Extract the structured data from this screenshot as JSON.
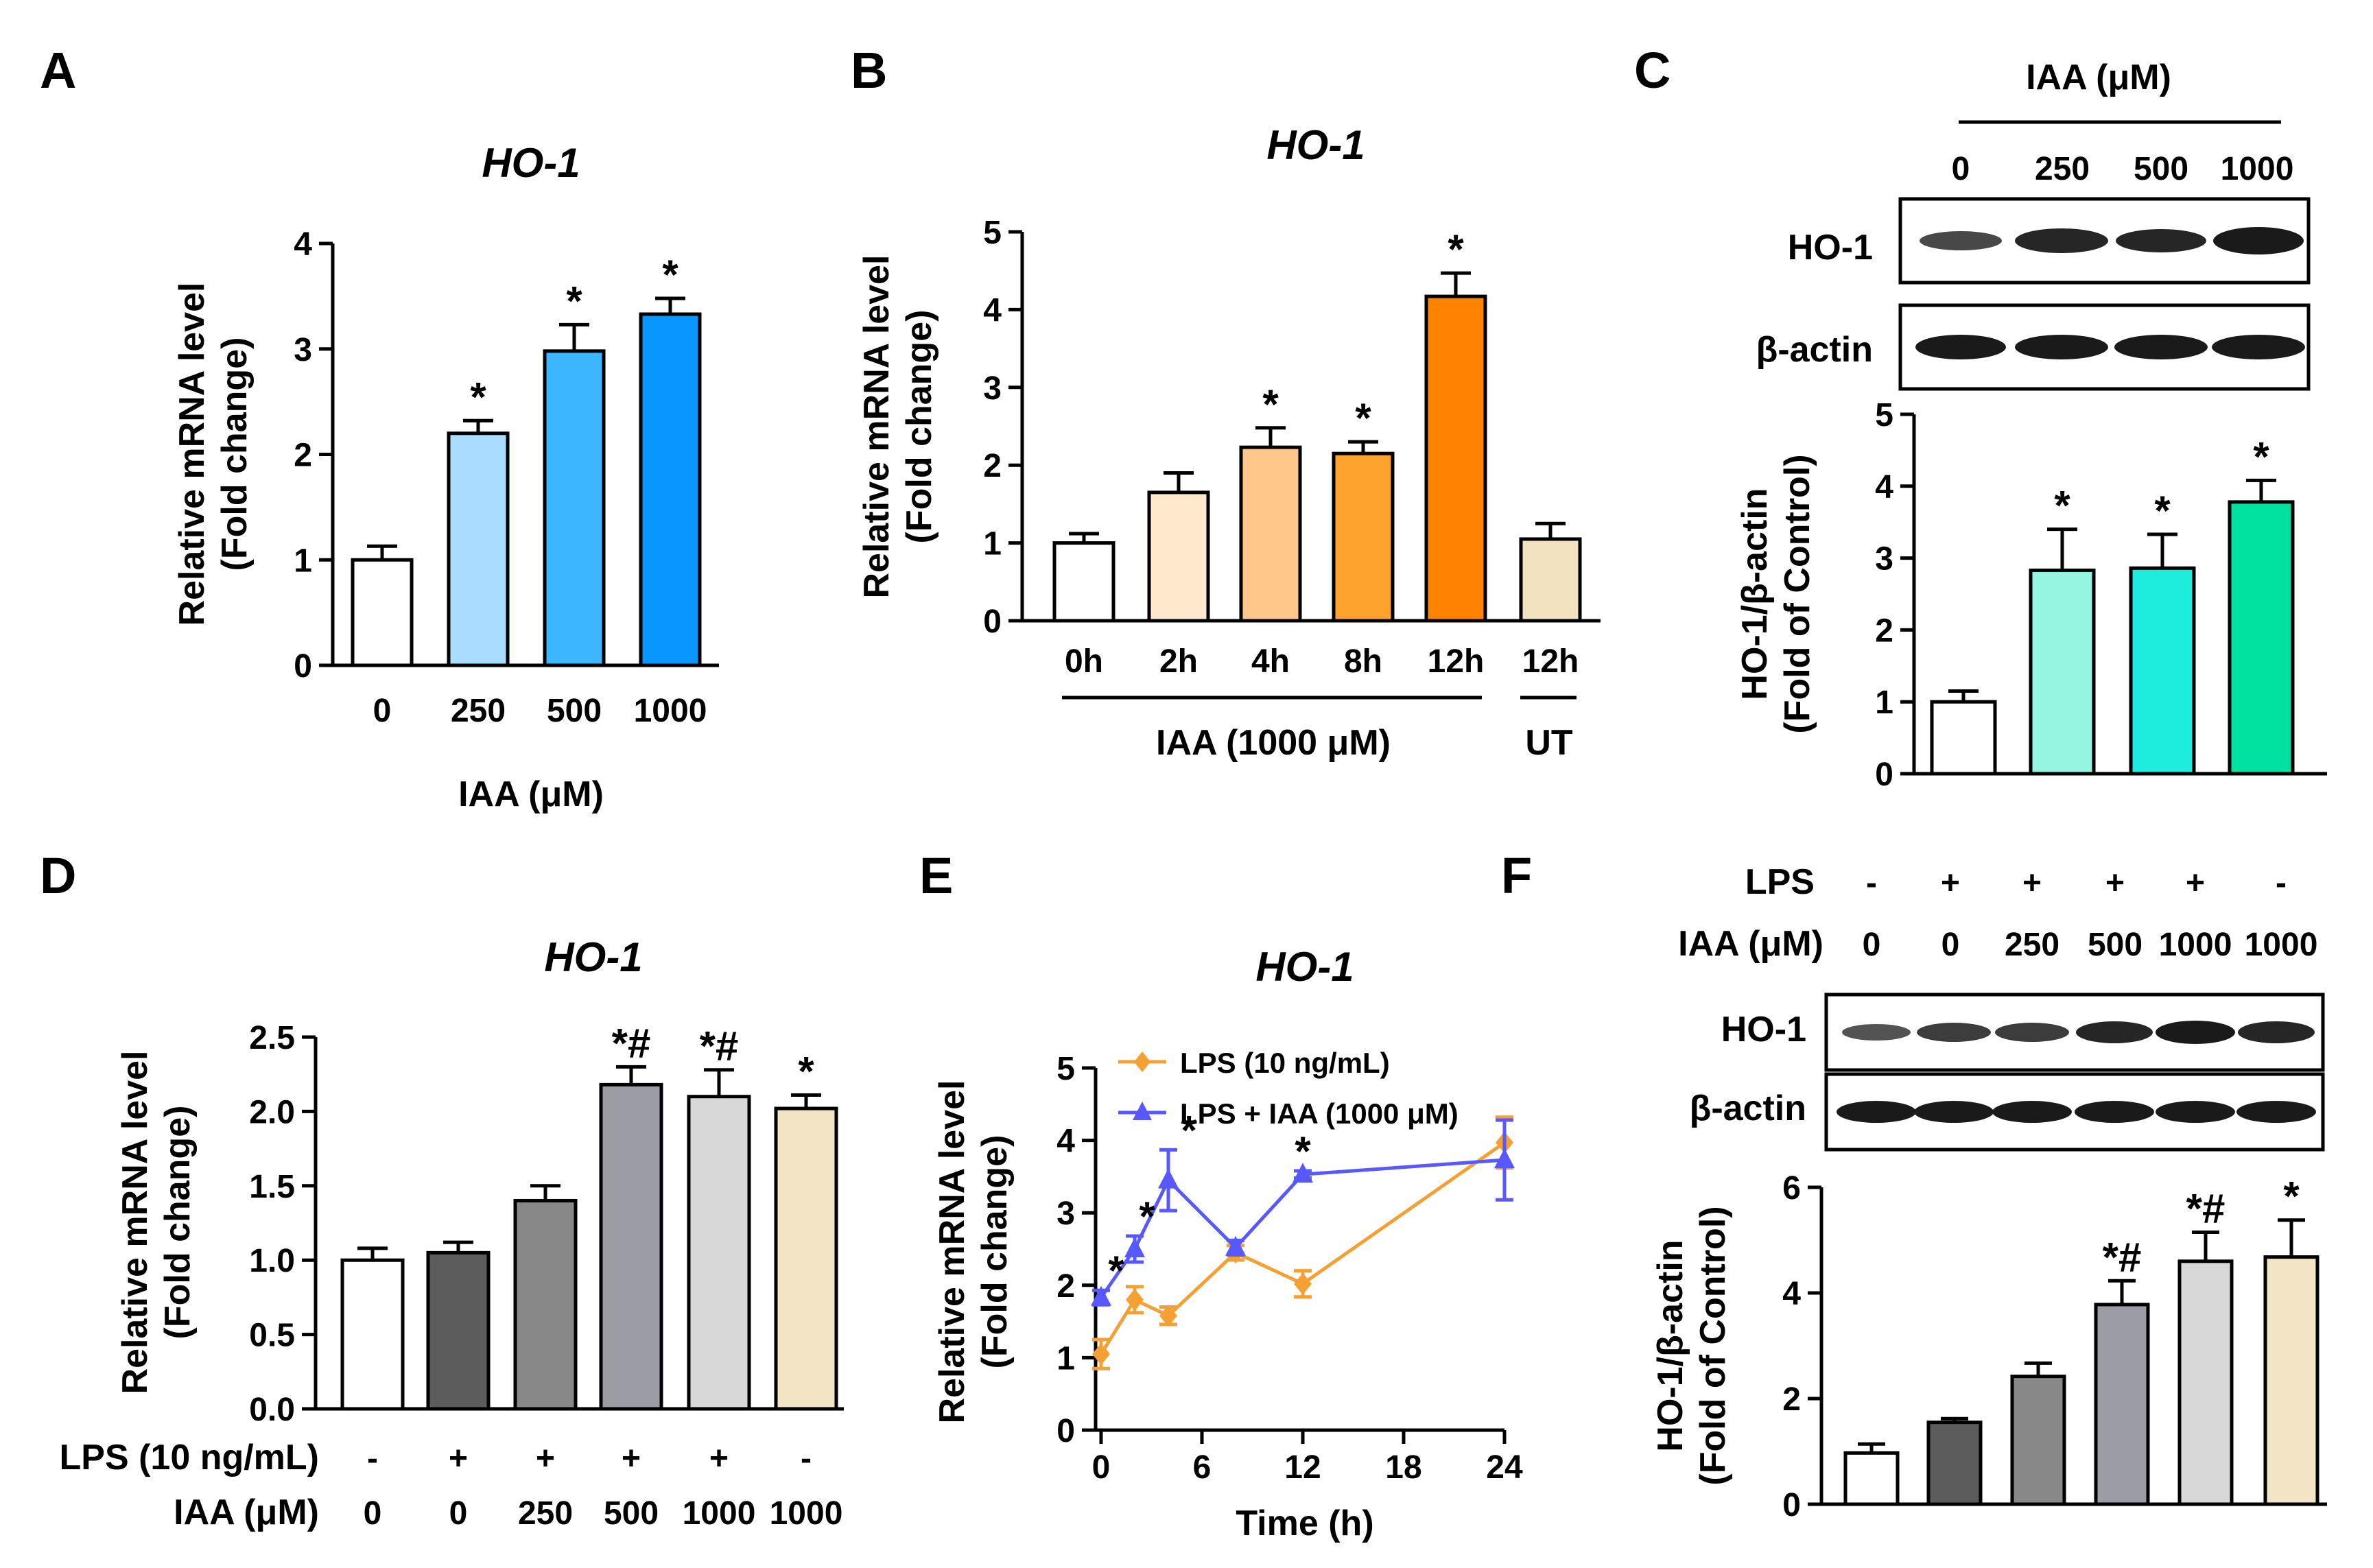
{
  "panels": [
    {
      "letter": "A"
    },
    {
      "letter": "B"
    },
    {
      "letter": "C"
    },
    {
      "letter": "D"
    },
    {
      "letter": "E"
    },
    {
      "letter": "F"
    }
  ],
  "colors": {
    "white": "#ffffff",
    "blue1": "#aadcff",
    "blue2": "#3cb6ff",
    "blue3": "#0a96ff",
    "or0": "#ffe8cc",
    "or1": "#ffc888",
    "or2": "#ffa22e",
    "or3": "#ff8200",
    "ut": "#f2e2bf",
    "teal1": "#96f5e0",
    "teal2": "#1eecdd",
    "teal3": "#00e19f",
    "g1": "#5c5c5c",
    "g2": "#888888",
    "g3": "#9c9ca4",
    "g4": "#d8d8d8",
    "beige": "#f2e4c4",
    "lps_line": "#f4a034",
    "iaa_line": "#5858ff"
  },
  "chart_data": [
    {
      "id": "A",
      "type": "bar",
      "title": "HO-1",
      "ylabel": [
        "Relative mRNA level",
        "(Fold change)"
      ],
      "xlabel": "IAA (μM)",
      "categories": [
        "0",
        "250",
        "500",
        "1000"
      ],
      "values": [
        1.0,
        2.2,
        2.98,
        3.33
      ],
      "errors": [
        0.13,
        0.12,
        0.25,
        0.15
      ],
      "significance": [
        "",
        "*",
        "*",
        "*"
      ],
      "fills": [
        "white",
        "blue1",
        "blue2",
        "blue3"
      ],
      "ylim": [
        0,
        4
      ],
      "yticks": [
        "0",
        "1",
        "2",
        "3",
        "4"
      ]
    },
    {
      "id": "B",
      "type": "bar",
      "title": "HO-1",
      "ylabel": [
        "Relative mRNA level",
        "(Fold change)"
      ],
      "categories": [
        "0h",
        "2h",
        "4h",
        "8h",
        "12h",
        "12h"
      ],
      "values": [
        1.0,
        1.65,
        2.23,
        2.15,
        4.17,
        1.05
      ],
      "errors": [
        0.12,
        0.25,
        0.25,
        0.15,
        0.3,
        0.2
      ],
      "significance": [
        "",
        "",
        "*",
        "*",
        "*",
        ""
      ],
      "fills": [
        "white",
        "or0",
        "or1",
        "or2",
        "or3",
        "ut"
      ],
      "ylim": [
        0,
        5
      ],
      "yticks": [
        "0",
        "1",
        "2",
        "3",
        "4",
        "5"
      ],
      "group_labels": [
        "IAA (1000 μM)",
        "UT"
      ]
    },
    {
      "id": "C",
      "type": "bar",
      "blot_header": "IAA (μM)",
      "lane_labels": [
        "0",
        "250",
        "500",
        "1000"
      ],
      "blot_rows": [
        "HO-1",
        "β-actin"
      ],
      "ylabel": [
        "HO-1/β-actin",
        "(Fold of Control)"
      ],
      "values": [
        1.0,
        2.83,
        2.86,
        3.78
      ],
      "errors": [
        0.15,
        0.57,
        0.47,
        0.3
      ],
      "significance": [
        "",
        "*",
        "*",
        "*"
      ],
      "fills": [
        "white",
        "teal1",
        "teal2",
        "teal3"
      ],
      "ylim": [
        0,
        5
      ],
      "yticks": [
        "0",
        "1",
        "2",
        "3",
        "4",
        "5"
      ]
    },
    {
      "id": "D",
      "type": "bar",
      "title": "HO-1",
      "ylabel": [
        "Relative mRNA level",
        "(Fold change)"
      ],
      "values": [
        1.0,
        1.05,
        1.4,
        2.18,
        2.1,
        2.02
      ],
      "errors": [
        0.08,
        0.07,
        0.1,
        0.12,
        0.18,
        0.09
      ],
      "significance": [
        "",
        "",
        "",
        "*#",
        "*#",
        "*"
      ],
      "fills": [
        "white",
        "g1",
        "g2",
        "g3",
        "g4",
        "beige"
      ],
      "ylim": [
        0,
        2.5
      ],
      "yticks": [
        "0.0",
        "0.5",
        "1.0",
        "1.5",
        "2.0",
        "2.5"
      ],
      "row_labels": [
        "LPS (10 ng/mL)",
        "IAA (μM)"
      ],
      "lps": [
        "-",
        "+",
        "+",
        "+",
        "+",
        "-"
      ],
      "iaa": [
        "0",
        "0",
        "250",
        "500",
        "1000",
        "1000"
      ]
    },
    {
      "id": "E",
      "type": "line",
      "title": "HO-1",
      "ylabel": [
        "Relative mRNA level",
        "(Fold change)"
      ],
      "xlabel": "Time (h)",
      "xlim": [
        0,
        24
      ],
      "xticks": [
        "0",
        "6",
        "12",
        "18",
        "24"
      ],
      "ylim": [
        0,
        5
      ],
      "yticks": [
        "0",
        "1",
        "2",
        "3",
        "4",
        "5"
      ],
      "series": [
        {
          "name": "LPS (10 ng/mL)",
          "color": "lps_line",
          "marker": "diamond",
          "x": [
            0,
            2,
            4,
            8,
            12,
            24
          ],
          "y": [
            1.05,
            1.8,
            1.58,
            2.45,
            2.02,
            3.97
          ],
          "err": [
            0.2,
            0.18,
            0.12,
            0.1,
            0.18,
            0.35
          ]
        },
        {
          "name": "LPS + IAA (1000 μM)",
          "color": "iaa_line",
          "marker": "triangle",
          "x": [
            0,
            2,
            4,
            8,
            12,
            24
          ],
          "y": [
            1.83,
            2.5,
            3.45,
            2.52,
            3.53,
            3.73
          ],
          "err": [
            0.1,
            0.18,
            0.42,
            0.1,
            0.05,
            0.55
          ]
        }
      ],
      "significance": [
        {
          "x": 0,
          "label": "*"
        },
        {
          "x": 2,
          "label": "*"
        },
        {
          "x": 4,
          "label": "*"
        },
        {
          "x": 12,
          "label": "*"
        }
      ]
    },
    {
      "id": "F",
      "type": "bar",
      "row_labels": [
        "LPS",
        "IAA (μM)"
      ],
      "lps": [
        "-",
        "+",
        "+",
        "+",
        "+",
        "-"
      ],
      "iaa": [
        "0",
        "0",
        "250",
        "500",
        "1000",
        "1000"
      ],
      "blot_rows": [
        "HO-1",
        "β-actin"
      ],
      "ylabel": [
        "HO-1/β-actin",
        "(Fold of Control)"
      ],
      "values": [
        0.97,
        1.55,
        2.42,
        3.78,
        4.6,
        4.68
      ],
      "errors": [
        0.17,
        0.07,
        0.25,
        0.45,
        0.55,
        0.7
      ],
      "significance": [
        "",
        "",
        "",
        "*#",
        "*#",
        "*"
      ],
      "fills": [
        "white",
        "g1",
        "g2",
        "g3",
        "g4",
        "beige"
      ],
      "ylim": [
        0,
        6
      ],
      "yticks": [
        "0",
        "2",
        "4",
        "6"
      ]
    }
  ]
}
